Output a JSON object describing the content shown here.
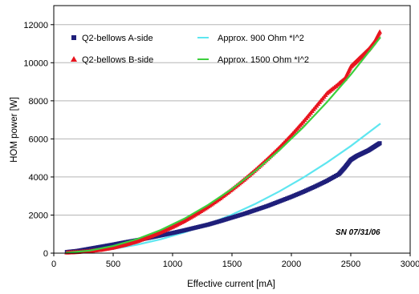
{
  "chart_data": {
    "type": "scatter",
    "title": "",
    "xlabel": "Effective current [mA]",
    "ylabel": "HOM power [W]",
    "xlim": [
      0,
      3000
    ],
    "ylim": [
      0,
      13000
    ],
    "x_ticks": [
      0,
      500,
      1000,
      1500,
      2000,
      2500,
      3000
    ],
    "y_ticks": [
      0,
      2000,
      4000,
      6000,
      8000,
      10000,
      12000
    ],
    "grid": "horizontal",
    "legend_placement": "top-left, two columns",
    "annotation": "SN 07/31/06",
    "series": [
      {
        "name": "Q2-bellows A-side",
        "kind": "markers",
        "marker": "square",
        "color": "#1f1f7a",
        "points": [
          [
            110,
            60
          ],
          [
            200,
            120
          ],
          [
            300,
            230
          ],
          [
            400,
            340
          ],
          [
            500,
            450
          ],
          [
            600,
            570
          ],
          [
            700,
            680
          ],
          [
            800,
            800
          ],
          [
            900,
            930
          ],
          [
            1000,
            1060
          ],
          [
            1100,
            1200
          ],
          [
            1200,
            1350
          ],
          [
            1300,
            1500
          ],
          [
            1400,
            1680
          ],
          [
            1500,
            1870
          ],
          [
            1600,
            2060
          ],
          [
            1700,
            2270
          ],
          [
            1800,
            2480
          ],
          [
            1900,
            2720
          ],
          [
            2000,
            2960
          ],
          [
            2100,
            3220
          ],
          [
            2200,
            3500
          ],
          [
            2300,
            3800
          ],
          [
            2400,
            4150
          ],
          [
            2450,
            4500
          ],
          [
            2500,
            4900
          ],
          [
            2550,
            5100
          ],
          [
            2600,
            5250
          ],
          [
            2650,
            5400
          ],
          [
            2700,
            5600
          ],
          [
            2750,
            5800
          ]
        ]
      },
      {
        "name": "Q2-bellows B-side",
        "kind": "markers",
        "marker": "triangle",
        "color": "#e8141e",
        "points": [
          [
            110,
            30
          ],
          [
            200,
            60
          ],
          [
            300,
            110
          ],
          [
            400,
            180
          ],
          [
            500,
            290
          ],
          [
            600,
            440
          ],
          [
            700,
            620
          ],
          [
            800,
            850
          ],
          [
            900,
            1100
          ],
          [
            1000,
            1380
          ],
          [
            1100,
            1700
          ],
          [
            1200,
            2060
          ],
          [
            1300,
            2450
          ],
          [
            1400,
            2880
          ],
          [
            1500,
            3350
          ],
          [
            1600,
            3850
          ],
          [
            1700,
            4380
          ],
          [
            1800,
            4950
          ],
          [
            1900,
            5550
          ],
          [
            2000,
            6200
          ],
          [
            2100,
            6900
          ],
          [
            2200,
            7650
          ],
          [
            2300,
            8400
          ],
          [
            2400,
            8900
          ],
          [
            2450,
            9150
          ],
          [
            2500,
            9800
          ],
          [
            2550,
            10100
          ],
          [
            2600,
            10400
          ],
          [
            2650,
            10700
          ],
          [
            2700,
            11100
          ],
          [
            2750,
            11700
          ]
        ]
      },
      {
        "name": "Approx. 900 Ohm *I^2",
        "kind": "line",
        "color": "#5ee6f0",
        "points": [
          [
            100,
            9
          ],
          [
            300,
            81
          ],
          [
            500,
            225
          ],
          [
            700,
            441
          ],
          [
            900,
            729
          ],
          [
            1100,
            1089
          ],
          [
            1300,
            1521
          ],
          [
            1500,
            2025
          ],
          [
            1700,
            2601
          ],
          [
            1900,
            3249
          ],
          [
            2100,
            3969
          ],
          [
            2300,
            4761
          ],
          [
            2500,
            5625
          ],
          [
            2750,
            6806
          ]
        ]
      },
      {
        "name": "Approx. 1500 Ohm *I^2",
        "kind": "line",
        "color": "#3ccf3c",
        "points": [
          [
            100,
            15
          ],
          [
            300,
            135
          ],
          [
            500,
            375
          ],
          [
            700,
            735
          ],
          [
            900,
            1215
          ],
          [
            1100,
            1815
          ],
          [
            1300,
            2535
          ],
          [
            1500,
            3375
          ],
          [
            1700,
            4335
          ],
          [
            1900,
            5415
          ],
          [
            2100,
            6615
          ],
          [
            2300,
            7935
          ],
          [
            2500,
            9375
          ],
          [
            2750,
            11344
          ]
        ]
      }
    ]
  }
}
